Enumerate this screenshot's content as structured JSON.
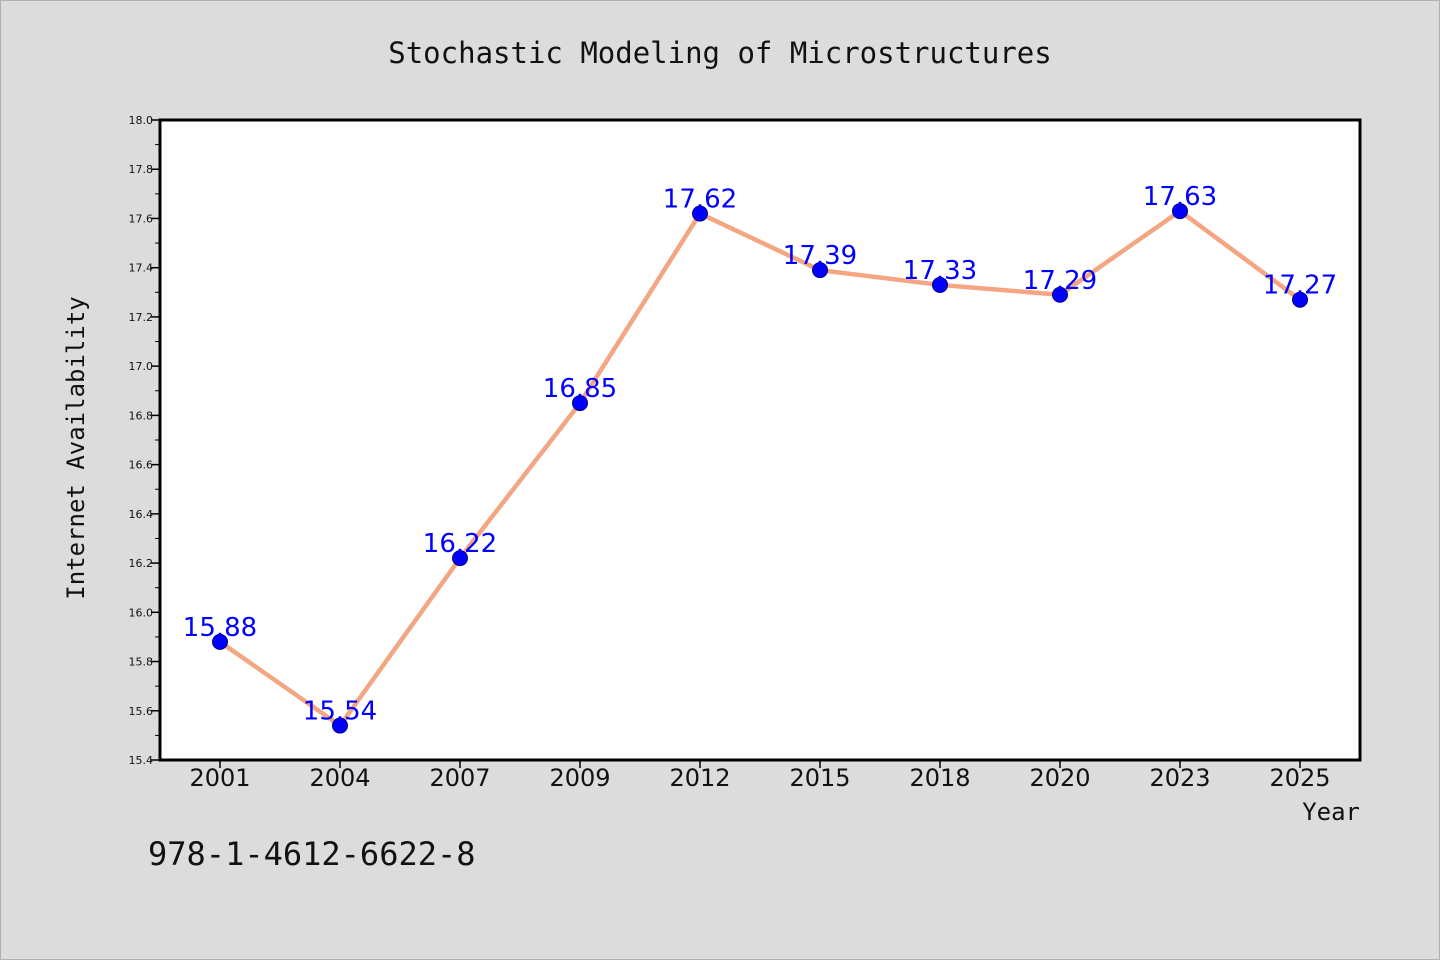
{
  "chart_data": {
    "type": "line",
    "title": "Stochastic Modeling of Microstructures",
    "xlabel": "Year",
    "ylabel": "Internet Availability",
    "categories": [
      "2001",
      "2004",
      "2007",
      "2009",
      "2012",
      "2015",
      "2018",
      "2020",
      "2023",
      "2025"
    ],
    "series": [
      {
        "values": [
          15.88,
          15.54,
          16.22,
          16.85,
          17.62,
          17.39,
          17.33,
          17.29,
          17.63,
          17.27
        ],
        "labels": [
          "15.88",
          "15.54",
          "16.22",
          "16.85",
          "17.62",
          "17.39",
          "17.33",
          "17.29",
          "17.63",
          "17.27"
        ],
        "line_color": "#f4a582",
        "marker_color": "#0000ff"
      }
    ],
    "ylim": [
      15.4,
      18.0
    ],
    "yticks": [
      "15.4",
      "15.6",
      "15.8",
      "16.0",
      "16.2",
      "16.4",
      "16.6",
      "16.8",
      "17.0",
      "17.2",
      "17.4",
      "17.6",
      "17.8",
      "18.0"
    ],
    "grid": false,
    "label_color": "#0000ff"
  },
  "footer_text": "978-1-4612-6622-8"
}
